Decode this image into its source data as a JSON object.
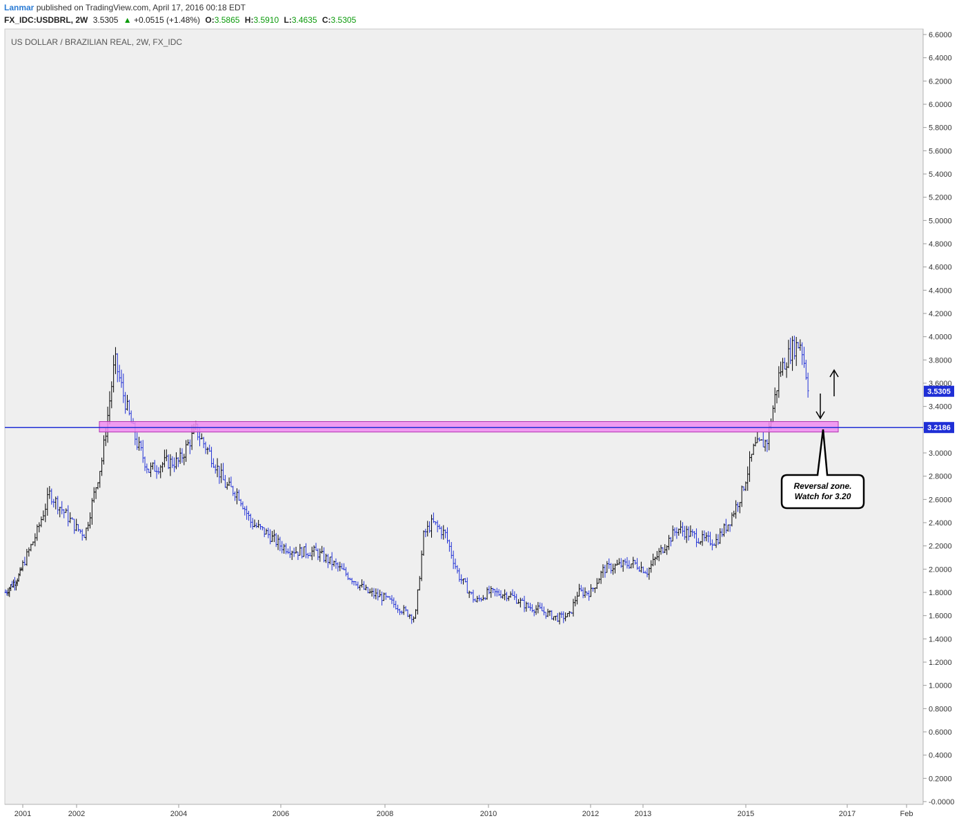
{
  "header": {
    "author": "Lanmar",
    "published": "published on TradingView.com, April 17, 2016 00:18 EDT"
  },
  "ticker": {
    "symbol": "FX_IDC:USDBRL, 2W",
    "last": "3.5305",
    "arrow": "▲",
    "change": "+0.0515 (+1.48%)",
    "o_label": "O:",
    "o_value": "3.5865",
    "h_label": "H:",
    "h_value": "3.5910",
    "l_label": "L:",
    "l_value": "3.4635",
    "c_label": "C:",
    "c_value": "3.5305"
  },
  "colors": {
    "bull": "#000000",
    "bear": "#1f2fd6",
    "zone_fill": "#f08cf0",
    "zone_border": "#b030b0",
    "hline": "#1f2fd6",
    "label_bg": "#1f2fd6"
  },
  "chart_data": {
    "type": "line",
    "title": "US DOLLAR / BRAZILIAN REAL, 2W, FX_IDC",
    "xlabel": "",
    "ylabel": "",
    "ylim": [
      0,
      6.6
    ],
    "x_tick_labels": [
      "2001",
      "2002",
      "2004",
      "2006",
      "2008",
      "2010",
      "2012",
      "2013",
      "2015",
      "2017",
      "Feb"
    ],
    "y_tick_labels": [
      "6.6000",
      "6.4000",
      "6.2000",
      "6.0000",
      "5.8000",
      "5.6000",
      "5.4000",
      "5.2000",
      "5.0000",
      "4.8000",
      "4.6000",
      "4.4000",
      "4.2000",
      "4.0000",
      "3.8000",
      "3.6000",
      "3.4000",
      "3.2000",
      "3.0000",
      "2.8000",
      "2.6000",
      "2.4000",
      "2.2000",
      "2.0000",
      "1.8000",
      "1.6000",
      "1.4000",
      "1.2000",
      "1.0000",
      "0.8000",
      "0.6000",
      "0.4000",
      "0.2000",
      "-0.0000"
    ],
    "y_tick_values": [
      6.6,
      6.4,
      6.2,
      6.0,
      5.8,
      5.6,
      5.4,
      5.2,
      5.0,
      4.8,
      4.6,
      4.4,
      4.2,
      4.0,
      3.8,
      3.6,
      3.4,
      3.2,
      3.0,
      2.8,
      2.6,
      2.4,
      2.2,
      2.0,
      1.8,
      1.6,
      1.4,
      1.2,
      1.0,
      0.8,
      0.6,
      0.4,
      0.2,
      0.0
    ],
    "price_labels": [
      {
        "text": "3.5305",
        "value": 3.5305
      },
      {
        "text": "3.2186",
        "value": 3.2186
      }
    ],
    "grid": false,
    "series": [
      {
        "x": [
          "2000-07",
          "2000-12",
          "2001-04",
          "2001-07",
          "2001-10",
          "2002-01",
          "2002-03",
          "2002-07",
          "2002-10",
          "2002-12",
          "2003-03",
          "2003-06",
          "2003-10",
          "2004-01",
          "2004-05",
          "2004-09",
          "2004-12",
          "2005-03",
          "2005-06",
          "2005-10",
          "2006-01",
          "2006-05",
          "2006-09",
          "2007-01",
          "2007-06",
          "2007-09",
          "2008-01",
          "2008-05",
          "2008-08",
          "2008-10",
          "2008-12",
          "2009-03",
          "2009-06",
          "2009-10",
          "2010-01",
          "2010-06",
          "2010-10",
          "2011-01",
          "2011-05",
          "2011-08",
          "2011-10",
          "2012-01",
          "2012-04",
          "2012-07",
          "2012-11",
          "2013-02",
          "2013-05",
          "2013-09",
          "2013-12",
          "2014-03",
          "2014-06",
          "2014-09",
          "2014-12",
          "2015-03",
          "2015-06",
          "2015-09",
          "2015-12",
          "2016-02",
          "2016-04"
        ],
        "values": [
          1.8,
          1.95,
          2.3,
          2.65,
          2.5,
          2.35,
          2.3,
          2.95,
          3.8,
          3.5,
          3.1,
          2.85,
          2.92,
          2.92,
          3.2,
          2.95,
          2.72,
          2.65,
          2.4,
          2.3,
          2.2,
          2.15,
          2.15,
          2.05,
          1.9,
          1.8,
          1.75,
          1.65,
          1.58,
          2.3,
          2.4,
          2.3,
          1.95,
          1.72,
          1.8,
          1.78,
          1.68,
          1.65,
          1.58,
          1.6,
          1.8,
          1.8,
          2.0,
          2.03,
          2.05,
          1.98,
          2.15,
          2.35,
          2.3,
          2.25,
          2.24,
          2.4,
          2.65,
          3.05,
          3.1,
          3.7,
          3.9,
          3.95,
          3.53
        ]
      }
    ],
    "annotations": [
      {
        "type": "zone",
        "from": 3.18,
        "to": 3.27,
        "start": "2002-07",
        "end": "2016-07"
      },
      {
        "type": "hline",
        "value": 3.2186
      },
      {
        "type": "text",
        "text": "Reversal zone.\nWatch for 3.20",
        "lines": [
          "Reversal zone.",
          "Watch for 3.20"
        ]
      },
      {
        "type": "arrow",
        "direction": "down"
      },
      {
        "type": "arrow",
        "direction": "up"
      }
    ]
  }
}
